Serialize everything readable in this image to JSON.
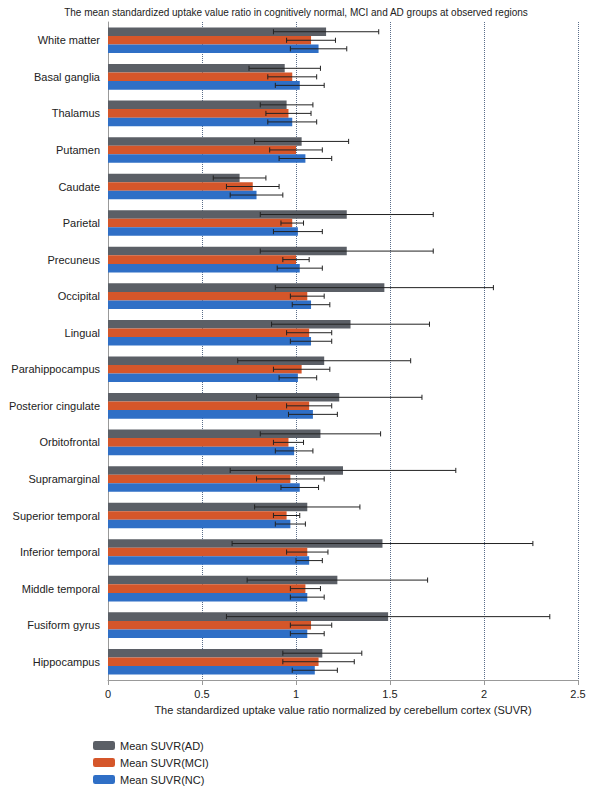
{
  "chart_data": {
    "type": "bar",
    "orientation": "horizontal",
    "title": "The mean standardized uptake value ratio in cognitively normal, MCI and AD groups at observed regions",
    "x_label": "The standardized uptake value ratio normalized by cerebellum cortex (SUVR)",
    "categories": [
      "White matter",
      "Basal ganglia",
      "Thalamus",
      "Putamen",
      "Caudate",
      "Parietal",
      "Precuneus",
      "Occipital",
      "Lingual",
      "Parahippocampus",
      "Posterior cingulate",
      "Orbitofrontal",
      "Supramarginal",
      "Superior temporal",
      "Inferior temporal",
      "Middle temporal",
      "Fusiform gyrus",
      "Hippocampus"
    ],
    "series": [
      {
        "name": "Mean SUVR(AD)",
        "color": "#5b5f66",
        "values": [
          1.16,
          0.94,
          0.95,
          1.03,
          0.7,
          1.27,
          1.27,
          1.47,
          1.29,
          1.15,
          1.23,
          1.13,
          1.25,
          1.06,
          1.46,
          1.22,
          1.49,
          1.14
        ],
        "errors": [
          0.28,
          0.19,
          0.14,
          0.25,
          0.14,
          0.46,
          0.46,
          0.58,
          0.42,
          0.46,
          0.44,
          0.32,
          0.6,
          0.28,
          0.8,
          0.48,
          0.86,
          0.21
        ]
      },
      {
        "name": "Mean SUVR(MCI)",
        "color": "#d5562a",
        "values": [
          1.08,
          0.98,
          0.96,
          1.0,
          0.77,
          0.98,
          1.0,
          1.06,
          1.07,
          1.03,
          1.07,
          0.96,
          0.97,
          0.95,
          1.06,
          1.05,
          1.08,
          1.12
        ],
        "errors": [
          0.13,
          0.13,
          0.12,
          0.14,
          0.14,
          0.06,
          0.07,
          0.09,
          0.12,
          0.15,
          0.12,
          0.08,
          0.18,
          0.07,
          0.11,
          0.08,
          0.11,
          0.19
        ]
      },
      {
        "name": "Mean SUVR(NC)",
        "color": "#2f6fc6",
        "values": [
          1.12,
          1.02,
          0.98,
          1.05,
          0.79,
          1.01,
          1.02,
          1.08,
          1.08,
          1.01,
          1.09,
          0.99,
          1.02,
          0.97,
          1.07,
          1.06,
          1.06,
          1.1
        ],
        "errors": [
          0.15,
          0.13,
          0.13,
          0.14,
          0.14,
          0.13,
          0.12,
          0.1,
          0.11,
          0.1,
          0.13,
          0.1,
          0.1,
          0.08,
          0.07,
          0.09,
          0.09,
          0.12
        ]
      }
    ],
    "xlim": [
      0,
      2.5
    ],
    "xticks": [
      0,
      0.5,
      1,
      1.5,
      2,
      2.5
    ],
    "grid": true,
    "legend": "bottom-left"
  }
}
